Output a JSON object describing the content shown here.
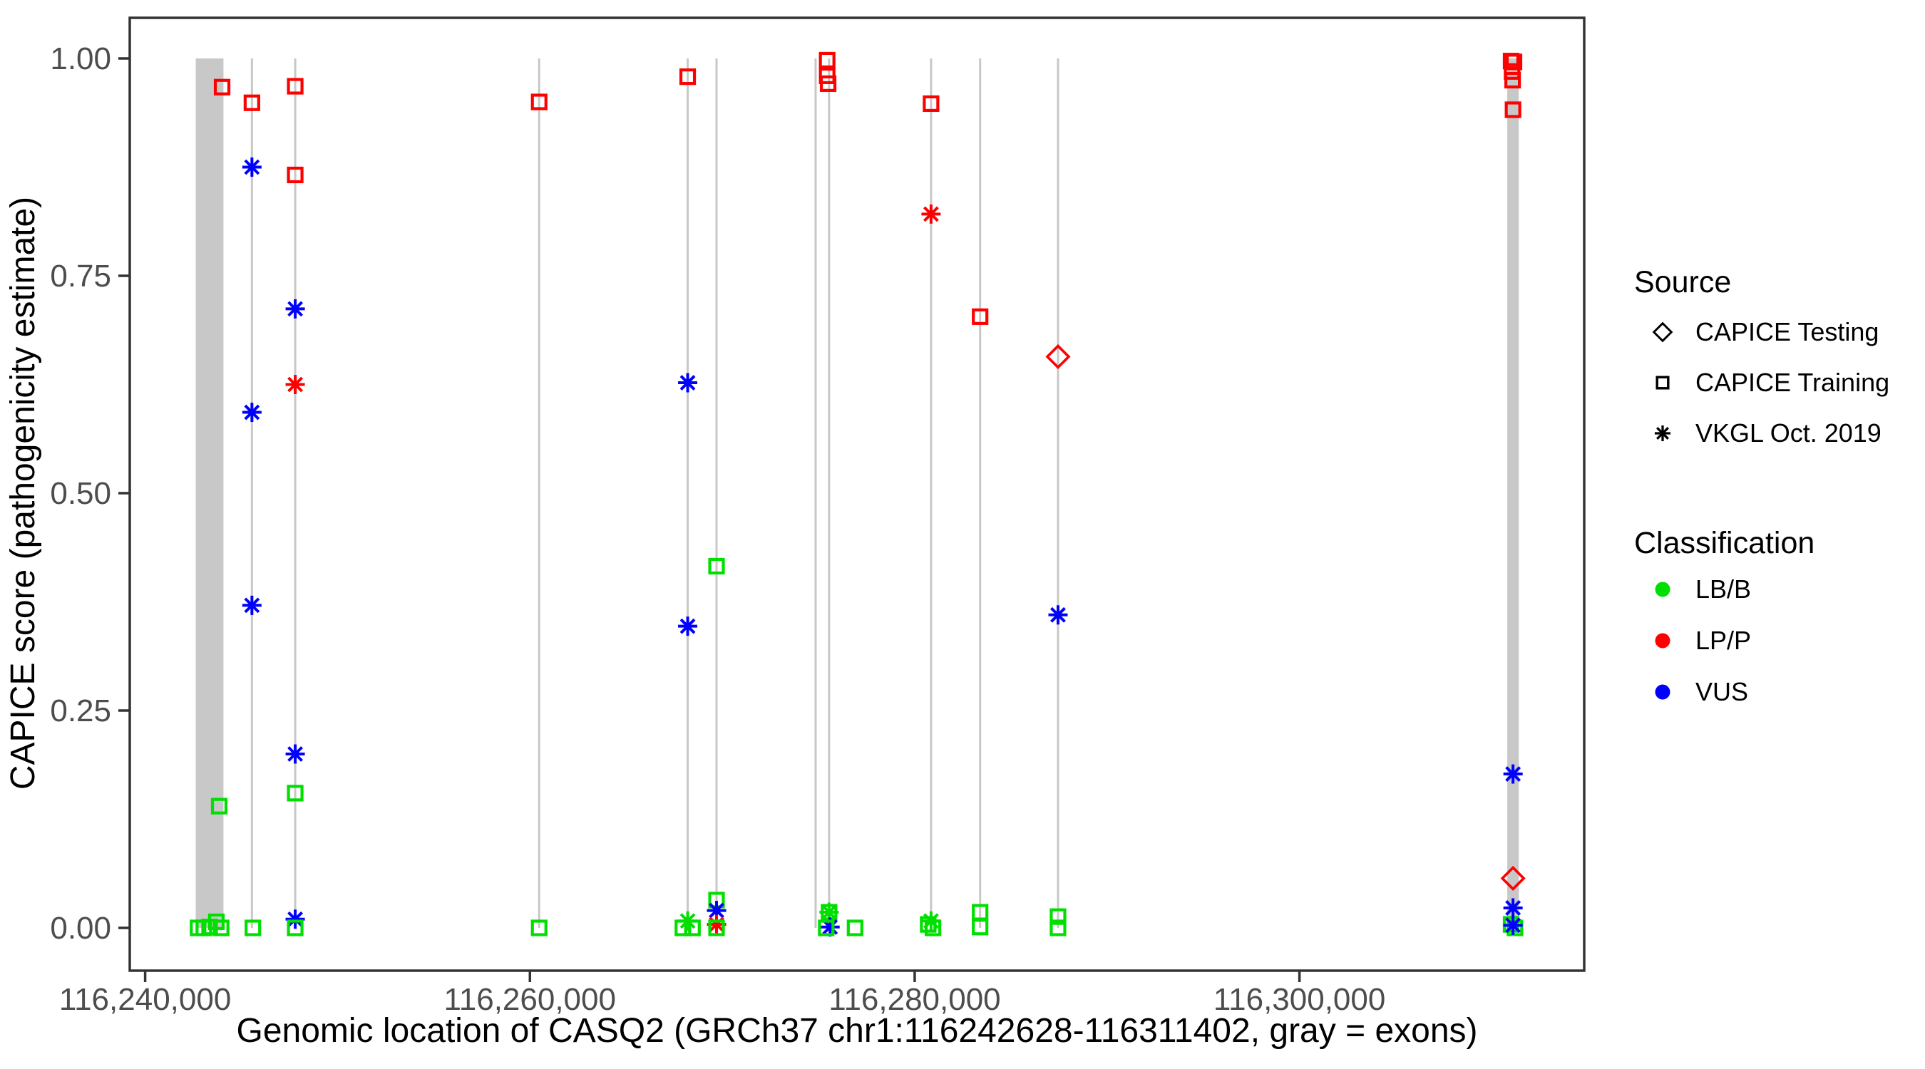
{
  "chart_data": {
    "type": "scatter",
    "title": "",
    "xlabel": "Genomic location of CASQ2 (GRCh37 chr1:116242628-116311402, gray = exons)",
    "ylabel": "CAPICE score (pathogenicity estimate)",
    "xlim": [
      116239200,
      116314800
    ],
    "ylim": [
      0,
      1
    ],
    "grid": "off",
    "x_ticks": [
      {
        "bp": 116240000,
        "label": "116,240,000"
      },
      {
        "bp": 116260000,
        "label": "116,260,000"
      },
      {
        "bp": 116280000,
        "label": "116,280,000"
      },
      {
        "bp": 116300000,
        "label": "116,300,000"
      }
    ],
    "y_ticks": [
      {
        "v": 0.0,
        "label": "0.00"
      },
      {
        "v": 0.25,
        "label": "0.25"
      },
      {
        "v": 0.5,
        "label": "0.50"
      },
      {
        "v": 0.75,
        "label": "0.75"
      },
      {
        "v": 1.0,
        "label": "1.00"
      }
    ],
    "gene": {
      "name": "CASQ2",
      "assembly": "GRCh37",
      "chromosome": "chr1",
      "start": 116242628,
      "end": 116311402
    },
    "exons": {
      "note": "gray = exons; spans drawn from score 0 to 1",
      "wide": [
        {
          "start": 116242630,
          "end": 116244070
        },
        {
          "start": 116310800,
          "end": 116311400
        }
      ],
      "thin": [
        116245550,
        116247800,
        116260480,
        116268200,
        116269700,
        116274850,
        116275550,
        116280850,
        116283400,
        116287450
      ]
    },
    "points": [
      {
        "bp": 116244000,
        "score": 0.967,
        "source": "training",
        "cls": "LP/P"
      },
      {
        "bp": 116243850,
        "score": 0.14,
        "source": "training",
        "cls": "LB/B"
      },
      {
        "bp": 116242750,
        "score": 0.0,
        "source": "training",
        "cls": "LB/B"
      },
      {
        "bp": 116243050,
        "score": 0.0,
        "source": "training",
        "cls": "LB/B"
      },
      {
        "bp": 116243350,
        "score": 0.001,
        "source": "training",
        "cls": "LB/B"
      },
      {
        "bp": 116243700,
        "score": 0.007,
        "source": "training",
        "cls": "LB/B"
      },
      {
        "bp": 116243950,
        "score": 0.0,
        "source": "training",
        "cls": "LB/B"
      },
      {
        "bp": 116245550,
        "score": 0.949,
        "source": "training",
        "cls": "LP/P"
      },
      {
        "bp": 116245550,
        "score": 0.875,
        "source": "vkgl",
        "cls": "VUS"
      },
      {
        "bp": 116245550,
        "score": 0.593,
        "source": "vkgl",
        "cls": "VUS"
      },
      {
        "bp": 116245550,
        "score": 0.371,
        "source": "vkgl",
        "cls": "VUS"
      },
      {
        "bp": 116245600,
        "score": 0.0,
        "source": "training",
        "cls": "LB/B"
      },
      {
        "bp": 116247800,
        "score": 0.968,
        "source": "training",
        "cls": "LP/P"
      },
      {
        "bp": 116247800,
        "score": 0.866,
        "source": "training",
        "cls": "LP/P"
      },
      {
        "bp": 116247800,
        "score": 0.712,
        "source": "vkgl",
        "cls": "VUS"
      },
      {
        "bp": 116247800,
        "score": 0.625,
        "source": "vkgl",
        "cls": "LP/P"
      },
      {
        "bp": 116247800,
        "score": 0.2,
        "source": "vkgl",
        "cls": "VUS"
      },
      {
        "bp": 116247800,
        "score": 0.155,
        "source": "training",
        "cls": "LB/B"
      },
      {
        "bp": 116247800,
        "score": 0.01,
        "source": "vkgl",
        "cls": "VUS"
      },
      {
        "bp": 116247800,
        "score": 0.0,
        "source": "training",
        "cls": "LB/B"
      },
      {
        "bp": 116260480,
        "score": 0.95,
        "source": "training",
        "cls": "LP/P"
      },
      {
        "bp": 116260480,
        "score": 0.0,
        "source": "training",
        "cls": "LB/B"
      },
      {
        "bp": 116268200,
        "score": 0.979,
        "source": "training",
        "cls": "LP/P"
      },
      {
        "bp": 116268200,
        "score": 0.627,
        "source": "vkgl",
        "cls": "VUS"
      },
      {
        "bp": 116268200,
        "score": 0.347,
        "source": "vkgl",
        "cls": "VUS"
      },
      {
        "bp": 116268200,
        "score": 0.008,
        "source": "vkgl",
        "cls": "LB/B"
      },
      {
        "bp": 116267950,
        "score": 0.0,
        "source": "training",
        "cls": "LB/B"
      },
      {
        "bp": 116268450,
        "score": 0.0,
        "source": "training",
        "cls": "LB/B"
      },
      {
        "bp": 116269700,
        "score": 0.416,
        "source": "training",
        "cls": "LB/B"
      },
      {
        "bp": 116269700,
        "score": 0.032,
        "source": "training",
        "cls": "LB/B"
      },
      {
        "bp": 116269700,
        "score": 0.02,
        "source": "vkgl",
        "cls": "VUS"
      },
      {
        "bp": 116269700,
        "score": 0.004,
        "source": "vkgl",
        "cls": "LP/P"
      },
      {
        "bp": 116269700,
        "score": 0.0,
        "source": "training",
        "cls": "LB/B"
      },
      {
        "bp": 116275450,
        "score": 0.998,
        "source": "training",
        "cls": "LP/P"
      },
      {
        "bp": 116275450,
        "score": 0.98,
        "source": "training",
        "cls": "LP/P"
      },
      {
        "bp": 116275500,
        "score": 0.971,
        "source": "training",
        "cls": "LP/P"
      },
      {
        "bp": 116275550,
        "score": 0.018,
        "source": "training",
        "cls": "LB/B"
      },
      {
        "bp": 116275550,
        "score": 0.018,
        "source": "vkgl",
        "cls": "LB/B"
      },
      {
        "bp": 116275600,
        "score": 0.001,
        "source": "vkgl",
        "cls": "VUS"
      },
      {
        "bp": 116275400,
        "score": 0.0,
        "source": "training",
        "cls": "LB/B"
      },
      {
        "bp": 116276900,
        "score": 0.0,
        "source": "training",
        "cls": "LB/B"
      },
      {
        "bp": 116280850,
        "score": 0.948,
        "source": "training",
        "cls": "LP/P"
      },
      {
        "bp": 116280850,
        "score": 0.821,
        "source": "vkgl",
        "cls": "LP/P"
      },
      {
        "bp": 116280850,
        "score": 0.008,
        "source": "vkgl",
        "cls": "LB/B"
      },
      {
        "bp": 116280700,
        "score": 0.004,
        "source": "training",
        "cls": "LB/B"
      },
      {
        "bp": 116280950,
        "score": 0.0,
        "source": "training",
        "cls": "LB/B"
      },
      {
        "bp": 116283400,
        "score": 0.703,
        "source": "training",
        "cls": "LP/P"
      },
      {
        "bp": 116283400,
        "score": 0.018,
        "source": "training",
        "cls": "LB/B"
      },
      {
        "bp": 116283400,
        "score": 0.001,
        "source": "training",
        "cls": "LB/B"
      },
      {
        "bp": 116287450,
        "score": 0.657,
        "source": "testing",
        "cls": "LP/P"
      },
      {
        "bp": 116287450,
        "score": 0.36,
        "source": "vkgl",
        "cls": "VUS"
      },
      {
        "bp": 116287450,
        "score": 0.013,
        "source": "training",
        "cls": "LB/B"
      },
      {
        "bp": 116287450,
        "score": 0.0,
        "source": "training",
        "cls": "LB/B"
      },
      {
        "bp": 116311000,
        "score": 0.997,
        "source": "training",
        "cls": "LP/P"
      },
      {
        "bp": 116311150,
        "score": 0.996,
        "source": "training",
        "cls": "LP/P"
      },
      {
        "bp": 116311050,
        "score": 0.985,
        "source": "training",
        "cls": "LP/P"
      },
      {
        "bp": 116311080,
        "score": 0.975,
        "source": "training",
        "cls": "LP/P"
      },
      {
        "bp": 116311100,
        "score": 0.941,
        "source": "training",
        "cls": "LP/P"
      },
      {
        "bp": 116311100,
        "score": 0.177,
        "source": "vkgl",
        "cls": "VUS"
      },
      {
        "bp": 116311100,
        "score": 0.057,
        "source": "testing",
        "cls": "LP/P"
      },
      {
        "bp": 116311100,
        "score": 0.023,
        "source": "vkgl",
        "cls": "VUS"
      },
      {
        "bp": 116311000,
        "score": 0.004,
        "source": "training",
        "cls": "LB/B"
      },
      {
        "bp": 116311200,
        "score": 0.0,
        "source": "training",
        "cls": "LB/B"
      },
      {
        "bp": 116311100,
        "score": 0.003,
        "source": "vkgl",
        "cls": "VUS"
      }
    ],
    "legend_position": "right",
    "legend": {
      "source": {
        "title": "Source",
        "items": [
          {
            "label": "CAPICE Testing",
            "marker": "diamond"
          },
          {
            "label": "CAPICE Training",
            "marker": "square"
          },
          {
            "label": "VKGL Oct. 2019",
            "marker": "asterisk"
          }
        ]
      },
      "classification": {
        "title": "Classification",
        "items": [
          {
            "label": "LB/B",
            "color": "#00DF00"
          },
          {
            "label": "LP/P",
            "color": "#FF0000"
          },
          {
            "label": "VUS",
            "color": "#0000FF"
          }
        ]
      }
    },
    "colors": {
      "LB/B": "#00DF00",
      "LP/P": "#FF0000",
      "VUS": "#0000FF",
      "exon_gray": "#C8C8C8",
      "panel_border": "#333333",
      "tick_text": "#4D4D4D",
      "axis_title": "#000000",
      "legend_text": "#000000",
      "background": "#FFFFFF"
    }
  }
}
